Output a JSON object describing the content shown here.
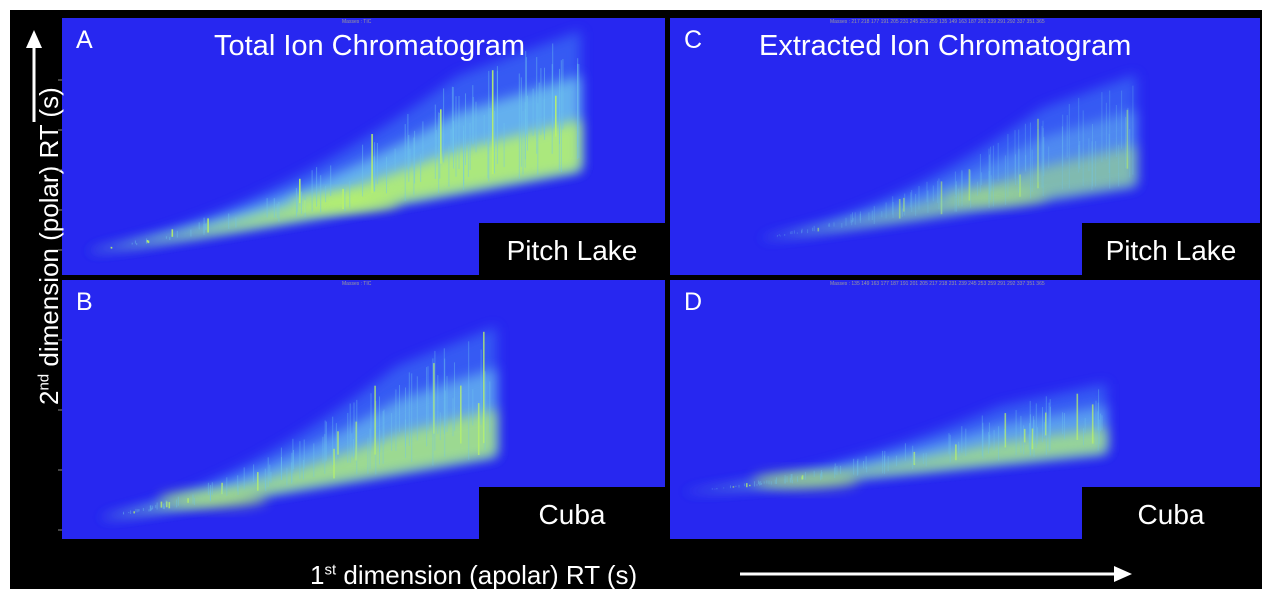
{
  "figure": {
    "y_axis_label": {
      "ordinal": "2",
      "sup": "nd",
      "rest": " dimension (polar) RT (s)"
    },
    "x_axis_label": {
      "ordinal": "1",
      "sup": "st",
      "rest": " dimension (apolar) RT (s)"
    }
  },
  "panels": [
    {
      "id": "A",
      "letter": "A",
      "title": "Total Ion Chromatogram",
      "sample": "Pitch Lake",
      "masses": "Masses : TIC"
    },
    {
      "id": "B",
      "letter": "B",
      "title": "",
      "sample": "Cuba",
      "masses": "Masses : TIC"
    },
    {
      "id": "C",
      "letter": "C",
      "title": "Extracted Ion Chromatogram",
      "sample": "Pitch Lake",
      "masses": "Masses : 217 218 177 191 205 231 245 253 259 135 149 163 187 201 239 291 292 337 351 365"
    },
    {
      "id": "D",
      "letter": "D",
      "title": "",
      "sample": "Cuba",
      "masses": "Masses : 135 149 163 177 187 191 201 205 217 218 231 239 245 253 259 291 292 337 351 365"
    }
  ],
  "colors": {
    "background": "#2727f0",
    "low": "#3a6cf4",
    "mid": "#6fc6ee",
    "high": "#b8f26a",
    "peak": "#e8f000"
  },
  "chart_data": [
    {
      "type": "heatmap",
      "panel": "A",
      "title": "Total Ion Chromatogram",
      "sample": "Pitch Lake",
      "xlabel": "1st dimension (apolar) RT (s)",
      "ylabel": "2nd dimension (polar) RT (s)",
      "ridge": {
        "x_start": 0.04,
        "x_end": 0.86,
        "x_peak": 0.47,
        "y_start": 0.09,
        "y_end": 0.67,
        "y_upper_end": 0.95,
        "intensity": 1.0,
        "vertical_streaks": true
      }
    },
    {
      "type": "heatmap",
      "panel": "B",
      "title": "",
      "sample": "Cuba",
      "xlabel": "1st dimension (apolar) RT (s)",
      "ylabel": "2nd dimension (polar) RT (s)",
      "ridge": {
        "x_start": 0.06,
        "x_end": 0.72,
        "x_peak": 0.25,
        "y_start": 0.08,
        "y_end": 0.52,
        "y_upper_end": 0.82,
        "intensity": 0.82,
        "vertical_streaks": true
      }
    },
    {
      "type": "heatmap",
      "panel": "C",
      "title": "Extracted Ion Chromatogram",
      "sample": "Pitch Lake",
      "xlabel": "1st dimension (apolar) RT (s)",
      "ylabel": "2nd dimension (polar) RT (s)",
      "ridge": {
        "x_start": 0.15,
        "x_end": 0.79,
        "x_peak": 0.55,
        "y_start": 0.14,
        "y_end": 0.52,
        "y_upper_end": 0.78,
        "intensity": 0.55,
        "vertical_streaks": true
      }
    },
    {
      "type": "heatmap",
      "panel": "D",
      "title": "",
      "sample": "Cuba",
      "xlabel": "1st dimension (apolar) RT (s)",
      "ylabel": "2nd dimension (polar) RT (s)",
      "ridge": {
        "x_start": 0.02,
        "x_end": 0.74,
        "x_peak": 0.23,
        "y_start": 0.18,
        "y_end": 0.46,
        "y_upper_end": 0.6,
        "intensity": 0.78,
        "vertical_streaks": true
      }
    }
  ]
}
